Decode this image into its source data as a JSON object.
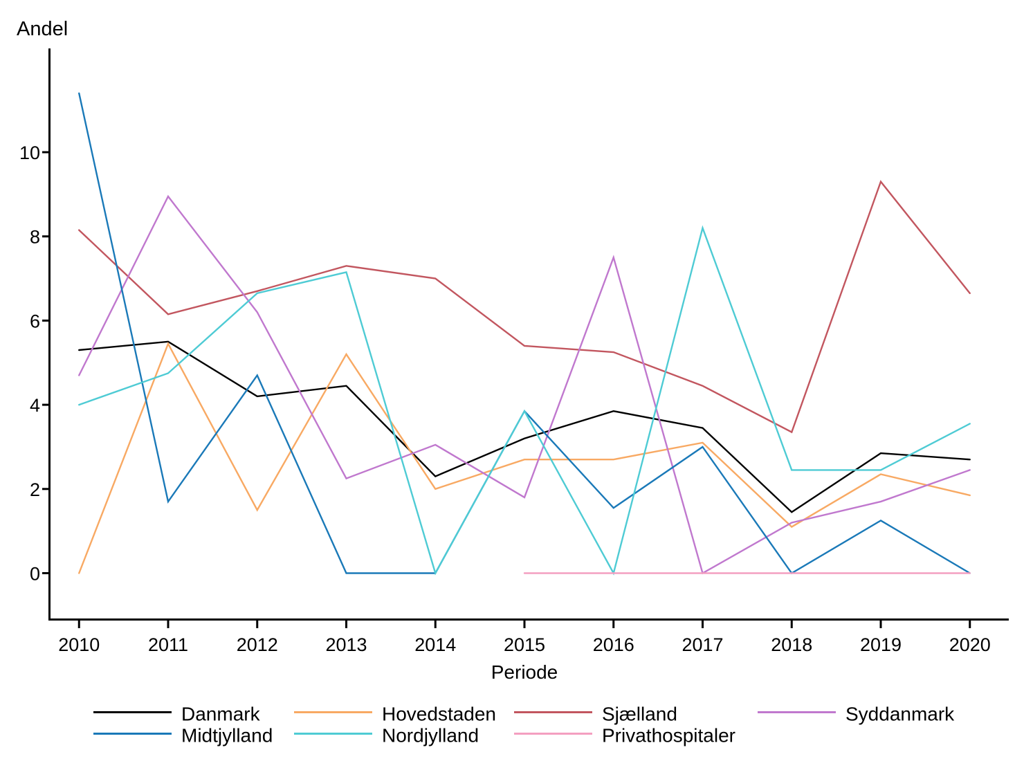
{
  "page": {
    "background": "#ffffff"
  },
  "chart_data": {
    "type": "line",
    "title": "",
    "ylabel": "Andel",
    "xlabel": "Periode",
    "categories": [
      "2010",
      "2011",
      "2012",
      "2013",
      "2014",
      "2015",
      "2016",
      "2017",
      "2018",
      "2019",
      "2020"
    ],
    "yticks": [
      0,
      2,
      4,
      6,
      8,
      10
    ],
    "ylim": [
      -1.1,
      12.5
    ],
    "grid": false,
    "legend_position": "bottom",
    "axis_color": "#000000",
    "series": [
      {
        "name": "Danmark",
        "color": "#000000",
        "values": [
          5.3,
          5.5,
          4.2,
          4.45,
          2.3,
          3.2,
          3.85,
          3.45,
          1.45,
          2.85,
          2.7
        ]
      },
      {
        "name": "Hovedstaden",
        "color": "#f8a963",
        "values": [
          0,
          5.45,
          1.5,
          5.2,
          2.0,
          2.7,
          2.7,
          3.1,
          1.1,
          2.35,
          1.85
        ]
      },
      {
        "name": "Sjælland",
        "color": "#c2565f",
        "values": [
          8.15,
          6.15,
          6.7,
          7.3,
          7.0,
          5.4,
          5.25,
          4.45,
          3.35,
          9.3,
          6.65
        ]
      },
      {
        "name": "Syddanmark",
        "color": "#c078ce",
        "values": [
          4.7,
          8.95,
          6.2,
          2.25,
          3.05,
          1.8,
          7.5,
          0,
          1.2,
          1.7,
          2.45
        ]
      },
      {
        "name": "Midtjylland",
        "color": "#1a79b8",
        "values": [
          11.4,
          1.7,
          4.7,
          0,
          0,
          3.85,
          1.55,
          3.0,
          0,
          1.25,
          0
        ]
      },
      {
        "name": "Nordjylland",
        "color": "#4ecbd4",
        "values": [
          4.0,
          4.75,
          6.65,
          7.15,
          0,
          3.85,
          0,
          8.2,
          2.45,
          2.45,
          3.55
        ]
      },
      {
        "name": "Privathospitaler",
        "color": "#f49fc0",
        "values": [
          null,
          null,
          null,
          null,
          null,
          0,
          0,
          0,
          0,
          0,
          0
        ]
      }
    ]
  }
}
